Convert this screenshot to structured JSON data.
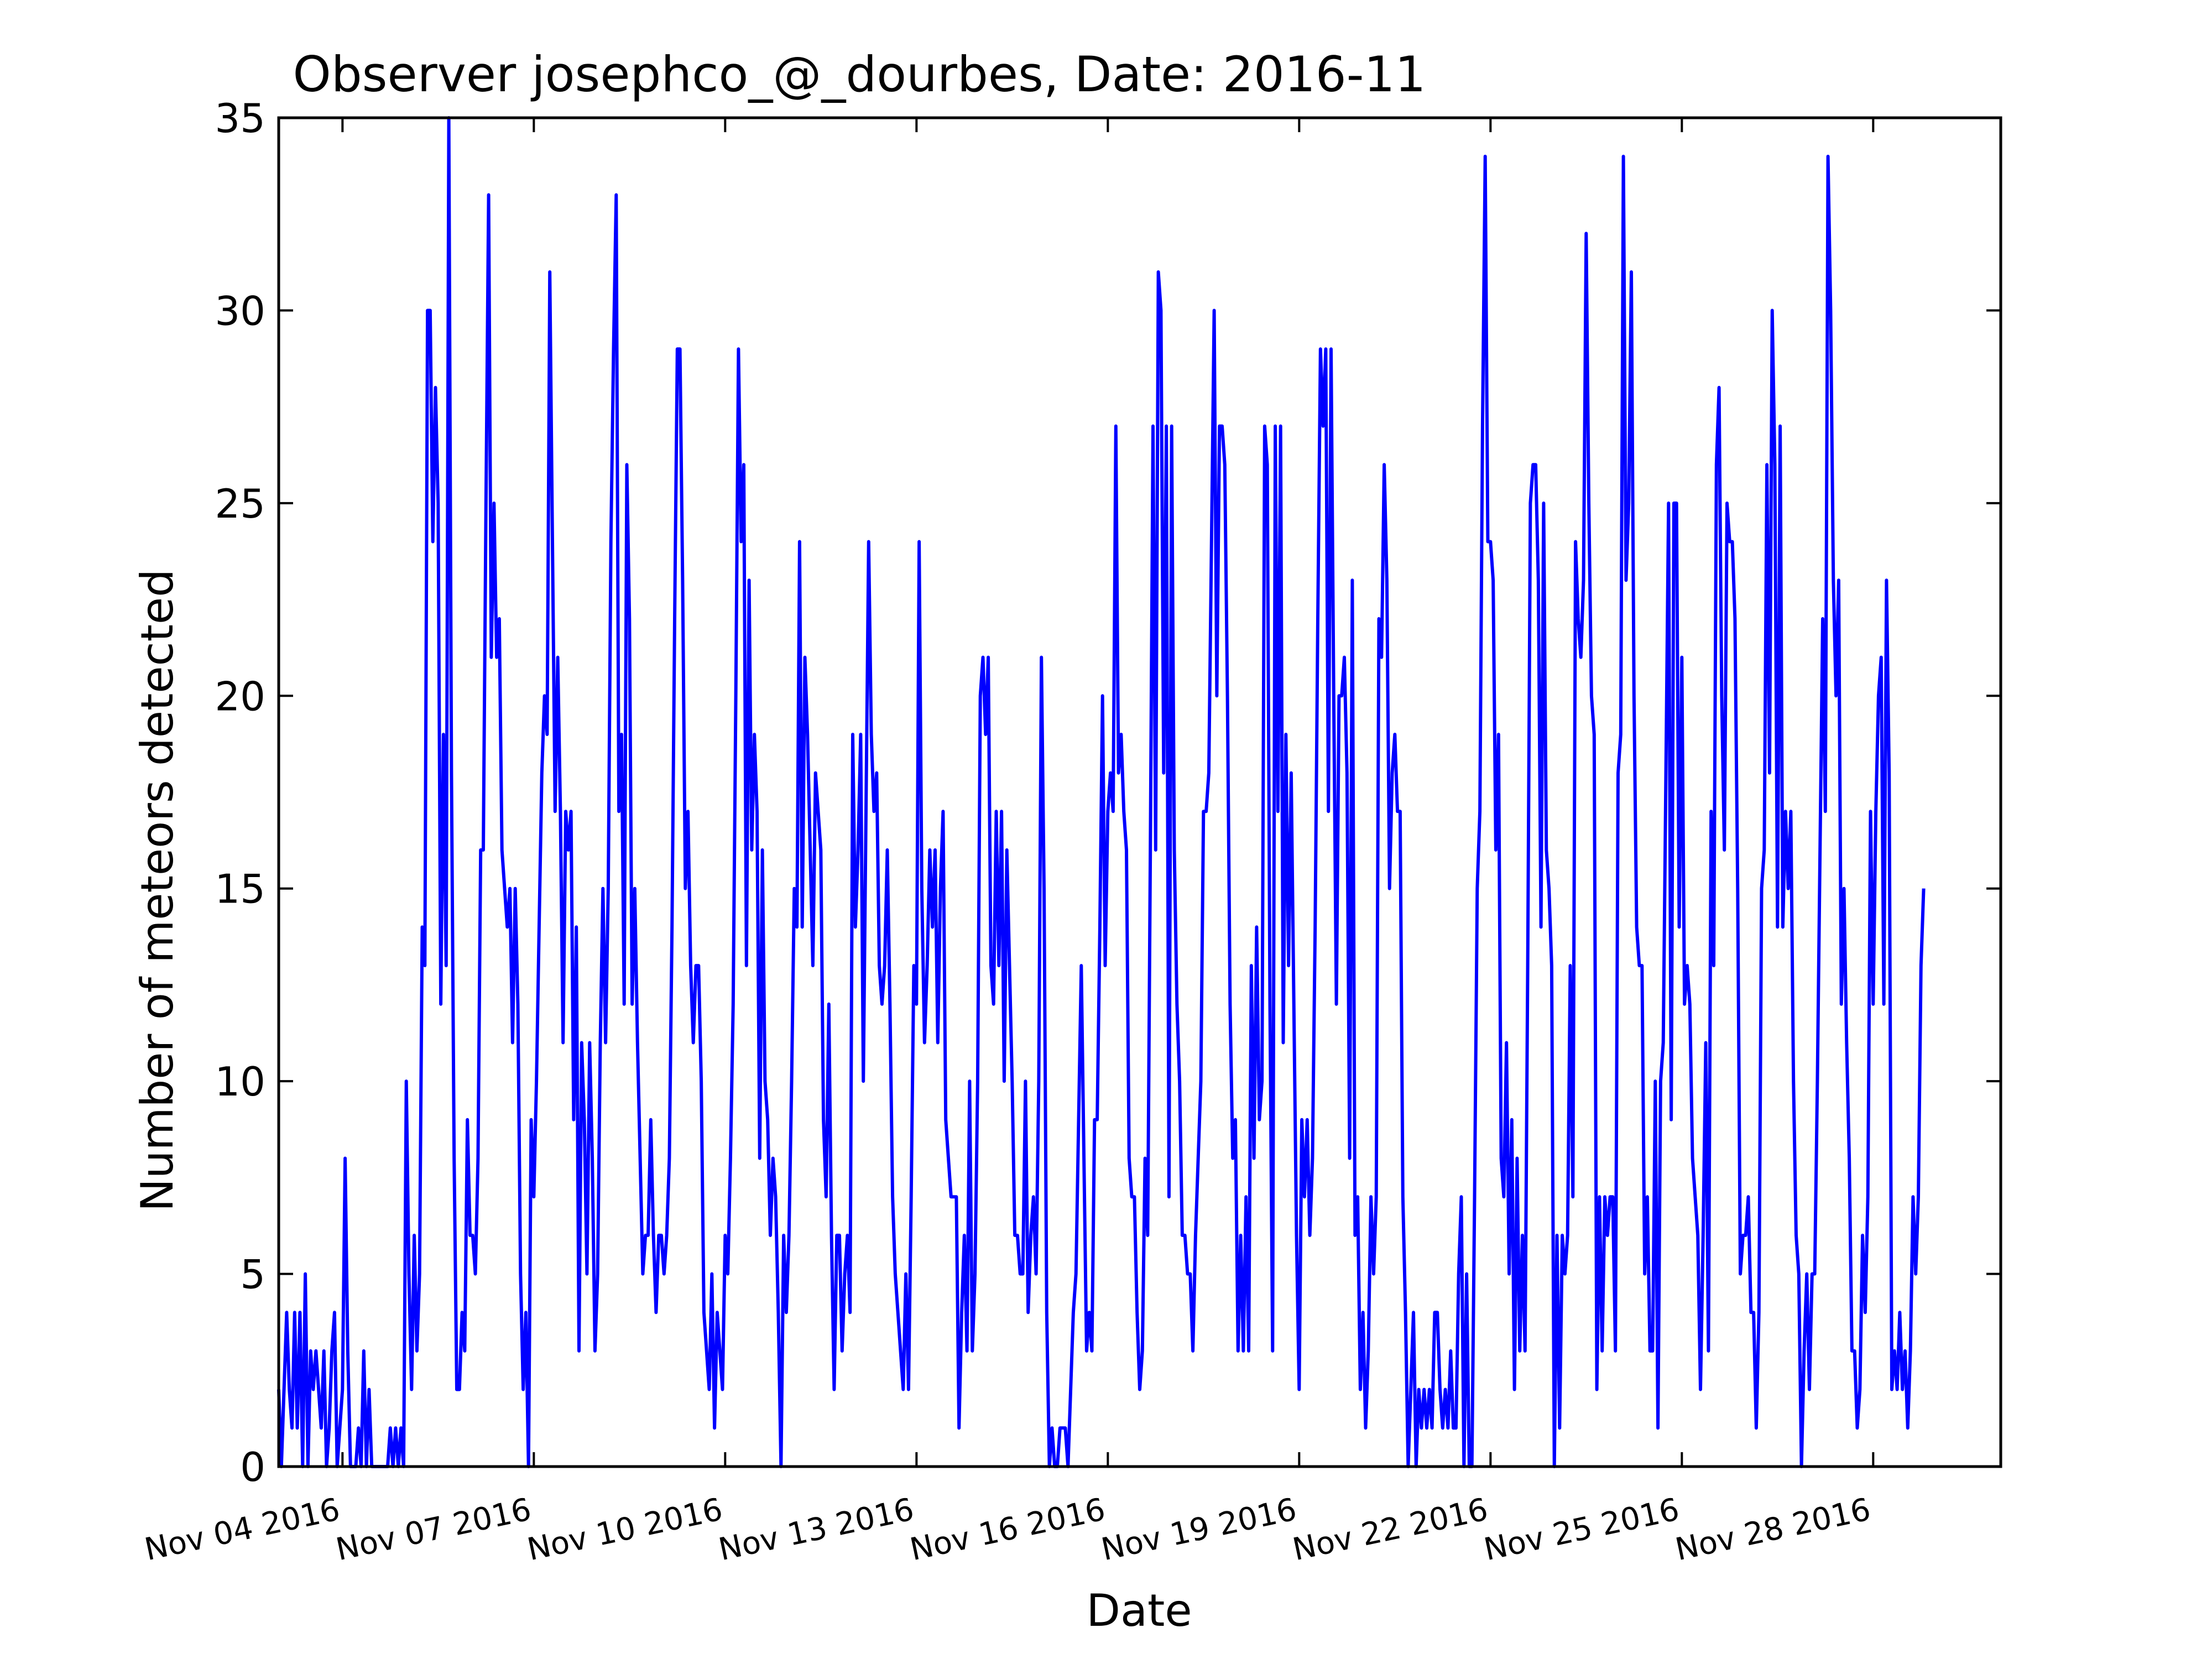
{
  "chart_data": {
    "type": "line",
    "title": "Observer josephco_@_dourbes, Date: 2016-11",
    "xlabel": "Date",
    "ylabel": "Number of meteors detected",
    "x_start": "2016-11-03",
    "points_per_day": 24,
    "xlim": [
      "2016-11-03",
      "2016-11-30"
    ],
    "ylim": [
      0,
      35
    ],
    "yticks": [
      0,
      5,
      10,
      15,
      20,
      25,
      30,
      35
    ],
    "xticks": [
      {
        "date": "2016-11-04",
        "label": "Nov 04 2016"
      },
      {
        "date": "2016-11-07",
        "label": "Nov 07 2016"
      },
      {
        "date": "2016-11-10",
        "label": "Nov 10 2016"
      },
      {
        "date": "2016-11-13",
        "label": "Nov 13 2016"
      },
      {
        "date": "2016-11-16",
        "label": "Nov 16 2016"
      },
      {
        "date": "2016-11-19",
        "label": "Nov 19 2016"
      },
      {
        "date": "2016-11-22",
        "label": "Nov 22 2016"
      },
      {
        "date": "2016-11-25",
        "label": "Nov 25 2016"
      },
      {
        "date": "2016-11-28",
        "label": "Nov 28 2016"
      }
    ],
    "grid": false,
    "line_color": "#0000ff",
    "series": [
      {
        "values": [
          2,
          0,
          2,
          4,
          2,
          1,
          4,
          1,
          4,
          0,
          5,
          0,
          3,
          2,
          3,
          2,
          1,
          3,
          0,
          1,
          3,
          4,
          0,
          1,
          2,
          8,
          3,
          0,
          0,
          0,
          1,
          0,
          3,
          0,
          2,
          0,
          0,
          0,
          0,
          0,
          0,
          0,
          1,
          0,
          1,
          0,
          1,
          0,
          10,
          5,
          2,
          6,
          3,
          5,
          14,
          13,
          30,
          30,
          24,
          28,
          25,
          12,
          19,
          13,
          35,
          18,
          8,
          2,
          2,
          4,
          3,
          9,
          6,
          6,
          5,
          8,
          16,
          16,
          25,
          33,
          21,
          25,
          21,
          22,
          16,
          15,
          14,
          15,
          11,
          15,
          12,
          5,
          2,
          4,
          0,
          9,
          7,
          10,
          14,
          18,
          20,
          19,
          31,
          24,
          17,
          21,
          17,
          11,
          17,
          16,
          17,
          9,
          14,
          3,
          11,
          9,
          5,
          11,
          8,
          3,
          5,
          11,
          15,
          11,
          15,
          24,
          29,
          33,
          17,
          19,
          12,
          26,
          22,
          12,
          15,
          11,
          8,
          5,
          6,
          6,
          9,
          6,
          4,
          6,
          6,
          5,
          6,
          8,
          14,
          22,
          29,
          29,
          23,
          15,
          17,
          13,
          11,
          13,
          13,
          10,
          4,
          3,
          2,
          5,
          1,
          4,
          3,
          2,
          6,
          5,
          8,
          12,
          20,
          29,
          24,
          26,
          13,
          23,
          16,
          19,
          17,
          8,
          16,
          10,
          9,
          6,
          8,
          7,
          4,
          0,
          6,
          4,
          6,
          10,
          15,
          14,
          24,
          14,
          21,
          19,
          16,
          13,
          18,
          17,
          16,
          9,
          7,
          12,
          6,
          2,
          6,
          6,
          3,
          5,
          6,
          4,
          19,
          14,
          16,
          19,
          10,
          17,
          24,
          19,
          17,
          18,
          13,
          12,
          13,
          16,
          12,
          7,
          5,
          4,
          3,
          2,
          5,
          2,
          7,
          13,
          12,
          24,
          15,
          11,
          13,
          16,
          14,
          16,
          11,
          15,
          17,
          9,
          8,
          7,
          7,
          7,
          1,
          4,
          6,
          3,
          10,
          3,
          5,
          10,
          20,
          21,
          19,
          21,
          13,
          12,
          17,
          13,
          17,
          10,
          16,
          13,
          10,
          6,
          6,
          5,
          5,
          10,
          4,
          6,
          7,
          5,
          10,
          21,
          15,
          4,
          0,
          1,
          0,
          0,
          1,
          1,
          1,
          0,
          2,
          4,
          5,
          9,
          13,
          8,
          3,
          4,
          3,
          9,
          9,
          14,
          20,
          13,
          17,
          18,
          17,
          27,
          18,
          19,
          17,
          16,
          8,
          7,
          7,
          4,
          2,
          3,
          8,
          6,
          16,
          27,
          16,
          31,
          30,
          18,
          27,
          7,
          27,
          16,
          12,
          10,
          6,
          6,
          5,
          5,
          3,
          6,
          8,
          10,
          17,
          17,
          18,
          24,
          30,
          20,
          27,
          27,
          26,
          20,
          12,
          8,
          9,
          3,
          6,
          3,
          7,
          3,
          13,
          8,
          14,
          9,
          10,
          27,
          26,
          12,
          3,
          27,
          17,
          27,
          11,
          19,
          13,
          18,
          12,
          6,
          2,
          9,
          7,
          9,
          6,
          8,
          14,
          22,
          29,
          27,
          29,
          17,
          29,
          20,
          12,
          20,
          20,
          21,
          18,
          8,
          23,
          6,
          7,
          2,
          4,
          1,
          3,
          7,
          5,
          7,
          22,
          21,
          26,
          23,
          15,
          18,
          19,
          17,
          17,
          7,
          4,
          0,
          2,
          4,
          0,
          2,
          1,
          2,
          1,
          2,
          1,
          4,
          4,
          2,
          1,
          2,
          1,
          3,
          1,
          1,
          5,
          7,
          0,
          5,
          0,
          0,
          7,
          15,
          17,
          27,
          34,
          24,
          24,
          23,
          16,
          19,
          8,
          7,
          11,
          5,
          9,
          2,
          8,
          3,
          6,
          3,
          13,
          25,
          26,
          26,
          23,
          14,
          25,
          16,
          15,
          13,
          0,
          6,
          1,
          6,
          5,
          6,
          13,
          7,
          24,
          22,
          21,
          23,
          32,
          25,
          20,
          19,
          2,
          7,
          3,
          7,
          6,
          7,
          7,
          3,
          18,
          19,
          34,
          23,
          25,
          31,
          20,
          14,
          13,
          13,
          5,
          7,
          3,
          3,
          10,
          1,
          10,
          11,
          18,
          25,
          9,
          25,
          25,
          14,
          21,
          12,
          13,
          12,
          8,
          7,
          6,
          2,
          6,
          11,
          3,
          17,
          13,
          26,
          28,
          20,
          16,
          25,
          24,
          24,
          22,
          15,
          5,
          6,
          6,
          7,
          4,
          4,
          1,
          4,
          15,
          16,
          26,
          18,
          30,
          26,
          14,
          27,
          14,
          17,
          15,
          17,
          10,
          6,
          5,
          0,
          3,
          5,
          2,
          5,
          5,
          10,
          16,
          22,
          17,
          34,
          30,
          23,
          20,
          23,
          12,
          15,
          11,
          8,
          3,
          3,
          1,
          2,
          6,
          4,
          7,
          17,
          12,
          17,
          20,
          21,
          12,
          23,
          18,
          2,
          3,
          2,
          4,
          2,
          3,
          1,
          3,
          7,
          5,
          7,
          13,
          15
        ]
      }
    ]
  }
}
